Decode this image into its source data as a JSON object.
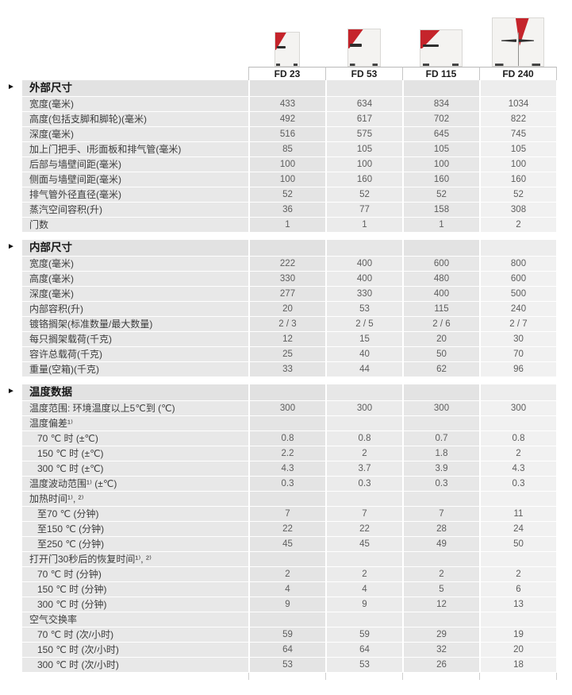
{
  "colors": {
    "accent_red": "#c5242b",
    "row_bg": "#e8e8e8",
    "section_header_bg": "#e2e2e2",
    "label_text": "#3d3d3d",
    "value_text": "#5d5d5d"
  },
  "models": [
    "FD 23",
    "FD 53",
    "FD 115",
    "FD 240"
  ],
  "product_images": [
    {
      "name": "oven-fd-23"
    },
    {
      "name": "oven-fd-53"
    },
    {
      "name": "oven-fd-115"
    },
    {
      "name": "oven-fd-240"
    }
  ],
  "sections": [
    {
      "title": "外部尺寸",
      "rows": [
        {
          "label": "宽度(毫米)",
          "values": [
            "433",
            "634",
            "834",
            "1034"
          ]
        },
        {
          "label": "高度(包括支脚和脚轮)(毫米)",
          "values": [
            "492",
            "617",
            "702",
            "822"
          ]
        },
        {
          "label": "深度(毫米)",
          "values": [
            "516",
            "575",
            "645",
            "745"
          ]
        },
        {
          "label": "加上门把手、I形面板和排气管(毫米)",
          "values": [
            "85",
            "105",
            "105",
            "105"
          ]
        },
        {
          "label": "后部与墙壁间距(毫米)",
          "values": [
            "100",
            "100",
            "100",
            "100"
          ]
        },
        {
          "label": "侧面与墙壁间距(毫米)",
          "values": [
            "100",
            "160",
            "160",
            "160"
          ]
        },
        {
          "label": "排气管外径直径(毫米)",
          "values": [
            "52",
            "52",
            "52",
            "52"
          ]
        },
        {
          "label": "蒸汽空间容积(升)",
          "values": [
            "36",
            "77",
            "158",
            "308"
          ]
        },
        {
          "label": "门数",
          "values": [
            "1",
            "1",
            "1",
            "2"
          ]
        }
      ]
    },
    {
      "title": "内部尺寸",
      "rows": [
        {
          "label": "宽度(毫米)",
          "values": [
            "222",
            "400",
            "600",
            "800"
          ]
        },
        {
          "label": "高度(毫米)",
          "values": [
            "330",
            "400",
            "480",
            "600"
          ]
        },
        {
          "label": "深度(毫米)",
          "values": [
            "277",
            "330",
            "400",
            "500"
          ]
        },
        {
          "label": "内部容积(升)",
          "values": [
            "20",
            "53",
            "115",
            "240"
          ]
        },
        {
          "label": "镀铬搁架(标准数量/最大数量)",
          "values": [
            "2 / 3",
            "2 / 5",
            "2 / 6",
            "2 / 7"
          ]
        },
        {
          "label": "每只搁架载荷(千克)",
          "values": [
            "12",
            "15",
            "20",
            "30"
          ]
        },
        {
          "label": "容许总载荷(千克)",
          "values": [
            "25",
            "40",
            "50",
            "70"
          ]
        },
        {
          "label": "重量(空箱)(千克)",
          "values": [
            "33",
            "44",
            "62",
            "96"
          ]
        }
      ]
    },
    {
      "title": "温度数据",
      "rows": [
        {
          "label": "温度范围:  环境温度以上5℃到 (℃)",
          "values": [
            "300",
            "300",
            "300",
            "300"
          ]
        },
        {
          "label": "温度偏差¹⁾",
          "values": [
            "",
            "",
            "",
            ""
          ]
        },
        {
          "label": "70 ℃ 时 (±℃)",
          "indent": true,
          "values": [
            "0.8",
            "0.8",
            "0.7",
            "0.8"
          ]
        },
        {
          "label": "150 ℃ 时 (±℃)",
          "indent": true,
          "values": [
            "2.2",
            "2",
            "1.8",
            "2"
          ]
        },
        {
          "label": "300 ℃ 时 (±℃)",
          "indent": true,
          "values": [
            "4.3",
            "3.7",
            "3.9",
            "4.3"
          ]
        },
        {
          "label": "温度波动范围¹⁾  (±℃)",
          "values": [
            "0.3",
            "0.3",
            "0.3",
            "0.3"
          ]
        },
        {
          "label": "加热时间¹⁾, ²⁾",
          "values": [
            "",
            "",
            "",
            ""
          ]
        },
        {
          "label": "至70 ℃ (分钟)",
          "indent": true,
          "values": [
            "7",
            "7",
            "7",
            "11"
          ]
        },
        {
          "label": "至150 ℃ (分钟)",
          "indent": true,
          "values": [
            "22",
            "22",
            "28",
            "24"
          ]
        },
        {
          "label": "至250 ℃ (分钟)",
          "indent": true,
          "values": [
            "45",
            "45",
            "49",
            "50"
          ]
        },
        {
          "label": "打开门30秒后的恢复时间¹⁾, ²⁾",
          "values": [
            "",
            "",
            "",
            ""
          ]
        },
        {
          "label": "70 ℃ 时 (分钟)",
          "indent": true,
          "values": [
            "2",
            "2",
            "2",
            "2"
          ]
        },
        {
          "label": "150 ℃ 时 (分钟)",
          "indent": true,
          "values": [
            "4",
            "4",
            "5",
            "6"
          ]
        },
        {
          "label": "300 ℃ 时 (分钟)",
          "indent": true,
          "values": [
            "9",
            "9",
            "12",
            "13"
          ]
        },
        {
          "label": "空气交换率",
          "values": [
            "",
            "",
            "",
            ""
          ]
        },
        {
          "label": "70 ℃ 时 (次/小时)",
          "indent": true,
          "values": [
            "59",
            "59",
            "29",
            "19"
          ]
        },
        {
          "label": "150 ℃ 时 (次/小时)",
          "indent": true,
          "values": [
            "64",
            "64",
            "32",
            "20"
          ]
        },
        {
          "label": "300 ℃ 时 (次/小时)",
          "indent": true,
          "values": [
            "53",
            "53",
            "26",
            "18"
          ]
        }
      ]
    }
  ]
}
